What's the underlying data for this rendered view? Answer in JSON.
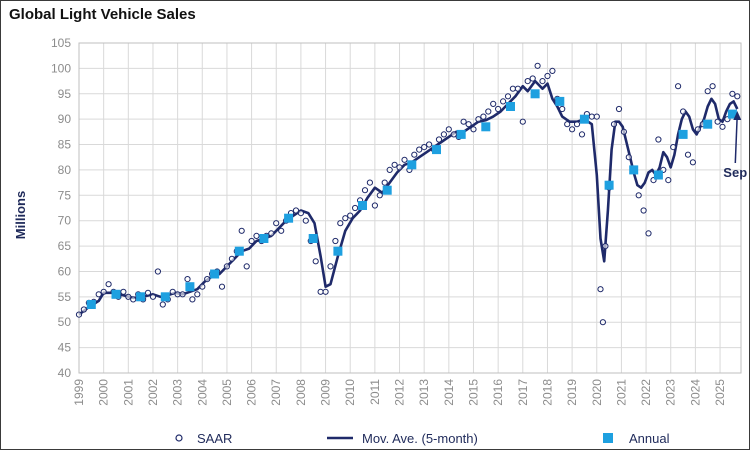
{
  "title": "Global Light Vehicle Sales",
  "chart_data": {
    "type": "line",
    "title": "Global Light Vehicle Sales",
    "xlabel": "",
    "ylabel": "Millions",
    "ylim": [
      40,
      105
    ],
    "yticks": [
      40,
      45,
      50,
      55,
      60,
      65,
      70,
      75,
      80,
      85,
      90,
      95,
      100,
      105
    ],
    "xlim": [
      1999,
      2025.85
    ],
    "xticks": [
      1999,
      2000,
      2001,
      2002,
      2003,
      2004,
      2005,
      2006,
      2007,
      2008,
      2009,
      2010,
      2011,
      2012,
      2013,
      2014,
      2015,
      2016,
      2017,
      2018,
      2019,
      2020,
      2021,
      2022,
      2023,
      2024,
      2025
    ],
    "grid": true,
    "legend": "bottom",
    "series": [
      {
        "name": "SAAR",
        "style": "open-circle",
        "color": "#1f2a6a",
        "x": [
          1999.0,
          1999.2,
          1999.4,
          1999.6,
          1999.8,
          2000.0,
          2000.2,
          2000.4,
          2000.6,
          2000.8,
          2001.0,
          2001.2,
          2001.4,
          2001.6,
          2001.8,
          2002.0,
          2002.2,
          2002.4,
          2002.6,
          2002.8,
          2003.0,
          2003.2,
          2003.4,
          2003.6,
          2003.8,
          2004.0,
          2004.2,
          2004.4,
          2004.6,
          2004.8,
          2005.0,
          2005.2,
          2005.4,
          2005.6,
          2005.8,
          2006.0,
          2006.2,
          2006.4,
          2006.6,
          2006.8,
          2007.0,
          2007.2,
          2007.4,
          2007.6,
          2007.8,
          2008.0,
          2008.2,
          2008.4,
          2008.6,
          2008.8,
          2009.0,
          2009.2,
          2009.4,
          2009.6,
          2009.8,
          2010.0,
          2010.2,
          2010.4,
          2010.6,
          2010.8,
          2011.0,
          2011.2,
          2011.4,
          2011.6,
          2011.8,
          2012.0,
          2012.2,
          2012.4,
          2012.6,
          2012.8,
          2013.0,
          2013.2,
          2013.4,
          2013.6,
          2013.8,
          2014.0,
          2014.2,
          2014.4,
          2014.6,
          2014.8,
          2015.0,
          2015.2,
          2015.4,
          2015.6,
          2015.8,
          2016.0,
          2016.2,
          2016.4,
          2016.6,
          2016.8,
          2017.0,
          2017.2,
          2017.4,
          2017.6,
          2017.8,
          2018.0,
          2018.2,
          2018.4,
          2018.6,
          2018.8,
          2019.0,
          2019.2,
          2019.4,
          2019.6,
          2019.8,
          2020.0,
          2020.15,
          2020.25,
          2020.35,
          2020.5,
          2020.7,
          2020.9,
          2021.1,
          2021.3,
          2021.5,
          2021.7,
          2021.9,
          2022.1,
          2022.3,
          2022.5,
          2022.7,
          2022.9,
          2023.1,
          2023.3,
          2023.5,
          2023.7,
          2023.9,
          2024.1,
          2024.3,
          2024.5,
          2024.7,
          2024.9,
          2025.1,
          2025.3,
          2025.5,
          2025.7
        ],
        "y": [
          51.5,
          52.5,
          53.8,
          54.0,
          55.5,
          56.0,
          57.5,
          56.0,
          55.0,
          56.0,
          55.0,
          54.5,
          55.5,
          54.5,
          55.8,
          55.0,
          60.0,
          53.5,
          54.5,
          56.0,
          55.5,
          55.5,
          58.5,
          54.5,
          55.5,
          57.0,
          58.5,
          59.5,
          60.0,
          57.0,
          61.0,
          62.5,
          64.0,
          68.0,
          61.0,
          66.0,
          67.0,
          66.0,
          67.0,
          67.5,
          69.5,
          68.0,
          70.0,
          71.5,
          72.0,
          71.5,
          70.0,
          66.0,
          62.0,
          56.0,
          56.0,
          61.0,
          66.0,
          69.5,
          70.5,
          71.0,
          72.5,
          74.0,
          76.0,
          77.5,
          73.0,
          75.0,
          77.5,
          80.0,
          81.0,
          80.5,
          82.0,
          80.0,
          83.0,
          84.0,
          84.5,
          85.0,
          84.0,
          86.0,
          87.0,
          88.0,
          87.0,
          86.5,
          89.5,
          89.0,
          88.0,
          90.0,
          90.5,
          91.5,
          93.0,
          92.0,
          93.5,
          94.5,
          96.0,
          96.0,
          89.5,
          97.5,
          98.0,
          100.5,
          97.5,
          98.5,
          99.5,
          94.0,
          92.0,
          89.0,
          88.0,
          89.0,
          87.0,
          91.0,
          90.5,
          90.5,
          56.5,
          50.0,
          65.0,
          76.5,
          89.0,
          92.0,
          87.5,
          82.5,
          80.0,
          75.0,
          72.0,
          67.5,
          78.0,
          86.0,
          80.0,
          78.0,
          84.5,
          96.5,
          91.5,
          83.0,
          81.5,
          88.0,
          89.0,
          95.5,
          96.5,
          89.5,
          88.5,
          90.0,
          95.0,
          94.5
        ]
      },
      {
        "name": "Mov. Ave. (5-month)",
        "style": "line",
        "color": "#1f2a6a",
        "x": [
          1999.0,
          1999.4,
          1999.8,
          2000.0,
          2000.4,
          2000.8,
          2001.2,
          2001.6,
          2002.0,
          2002.3,
          2002.6,
          2002.9,
          2003.2,
          2003.5,
          2003.8,
          2004.1,
          2004.4,
          2004.7,
          2005.0,
          2005.3,
          2005.6,
          2005.9,
          2006.2,
          2006.5,
          2006.8,
          2007.1,
          2007.4,
          2007.7,
          2008.0,
          2008.3,
          2008.55,
          2008.8,
          2009.0,
          2009.2,
          2009.5,
          2009.8,
          2010.1,
          2010.4,
          2010.7,
          2011.0,
          2011.3,
          2011.6,
          2011.9,
          2012.2,
          2012.5,
          2012.8,
          2013.1,
          2013.4,
          2013.7,
          2014.0,
          2014.3,
          2014.6,
          2014.9,
          2015.2,
          2015.5,
          2015.8,
          2016.1,
          2016.4,
          2016.7,
          2017.0,
          2017.2,
          2017.5,
          2017.8,
          2018.0,
          2018.2,
          2018.4,
          2018.6,
          2018.9,
          2019.2,
          2019.5,
          2019.8,
          2020.0,
          2020.15,
          2020.3,
          2020.45,
          2020.6,
          2020.75,
          2020.9,
          2021.05,
          2021.2,
          2021.35,
          2021.5,
          2021.65,
          2021.8,
          2021.95,
          2022.1,
          2022.25,
          2022.4,
          2022.55,
          2022.7,
          2022.85,
          2023.0,
          2023.15,
          2023.3,
          2023.45,
          2023.6,
          2023.75,
          2023.9,
          2024.05,
          2024.2,
          2024.35,
          2024.5,
          2024.65,
          2024.8,
          2024.95,
          2025.1,
          2025.25,
          2025.4,
          2025.55,
          2025.7
        ],
        "y": [
          51.5,
          53.0,
          54.2,
          55.8,
          55.8,
          55.3,
          54.8,
          55.0,
          55.5,
          55.0,
          55.3,
          55.8,
          55.5,
          56.0,
          56.5,
          58.0,
          59.0,
          59.5,
          61.0,
          62.5,
          64.0,
          64.5,
          66.0,
          66.5,
          67.0,
          68.5,
          70.0,
          71.0,
          72.0,
          71.5,
          69.5,
          63.0,
          57.0,
          57.5,
          63.0,
          68.0,
          70.5,
          72.0,
          74.5,
          76.5,
          75.5,
          77.5,
          79.5,
          81.0,
          81.5,
          82.5,
          83.5,
          84.5,
          85.5,
          86.5,
          87.5,
          87.5,
          88.5,
          89.5,
          89.8,
          90.5,
          91.5,
          93.0,
          94.5,
          96.5,
          95.5,
          97.5,
          96.0,
          97.0,
          94.0,
          92.5,
          90.5,
          89.5,
          89.5,
          90.0,
          89.0,
          79.0,
          66.5,
          62.0,
          72.0,
          84.0,
          89.5,
          89.5,
          88.5,
          85.5,
          82.5,
          79.5,
          77.0,
          76.5,
          77.5,
          79.5,
          80.0,
          79.0,
          80.5,
          83.5,
          82.5,
          80.5,
          83.0,
          87.0,
          90.0,
          91.5,
          90.5,
          88.0,
          87.0,
          88.5,
          90.0,
          92.5,
          94.0,
          93.0,
          90.0,
          89.5,
          91.5,
          93.0,
          93.5,
          92.0
        ]
      },
      {
        "name": "Annual",
        "style": "square",
        "color": "#1ea0e0",
        "x": [
          1999.5,
          2000.5,
          2001.5,
          2002.5,
          2003.5,
          2004.5,
          2005.5,
          2006.5,
          2007.5,
          2008.5,
          2009.5,
          2010.5,
          2011.5,
          2012.5,
          2013.5,
          2014.5,
          2015.5,
          2016.5,
          2017.5,
          2018.5,
          2019.5,
          2020.5,
          2021.5,
          2022.5,
          2023.5,
          2024.5,
          2025.5
        ],
        "y": [
          53.5,
          55.5,
          55.0,
          55.0,
          57.0,
          59.5,
          64.0,
          66.5,
          70.5,
          66.5,
          64.0,
          73.0,
          76.0,
          81.0,
          84.0,
          87.0,
          88.5,
          92.5,
          95.0,
          93.5,
          90.0,
          77.0,
          80.0,
          79.0,
          87.0,
          89.0,
          91.0
        ]
      }
    ],
    "annotations": [
      {
        "text": "Sep",
        "x": 2025.7,
        "y": 92.0
      }
    ]
  },
  "legend_labels": [
    "SAAR",
    "Mov. Ave. (5-month)",
    "Annual"
  ]
}
